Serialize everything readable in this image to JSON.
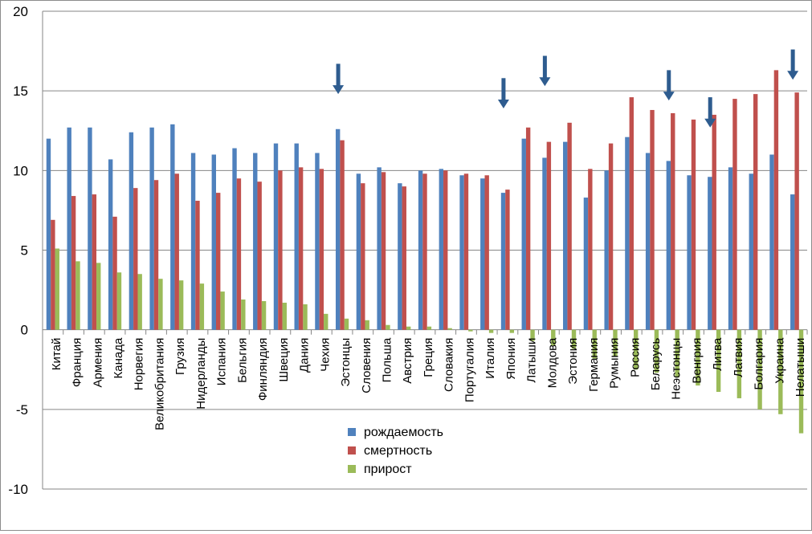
{
  "chart_data": {
    "type": "bar",
    "title": "",
    "xlabel": "",
    "ylabel": "",
    "ylim": [
      -10,
      20
    ],
    "yticks": [
      -10,
      -5,
      0,
      5,
      10,
      15,
      20
    ],
    "grid": true,
    "legend_position": "bottom-center",
    "categories": [
      "Китай",
      "Франция",
      "Армения",
      "Канада",
      "Норвегия",
      "Великобритания",
      "Грузия",
      "Нидерланды",
      "Испания",
      "Бельгия",
      "Финляндия",
      "Швеция",
      "Дания",
      "Чехия",
      "Эстонцы",
      "Словения",
      "Польша",
      "Австрия",
      "Греция",
      "Словакия",
      "Португалия",
      "Италия",
      "Япония",
      "Латыши",
      "Молдова",
      "Эстония",
      "Германия",
      "Румыния",
      "Россия",
      "Беларусь",
      "Неэстонцы",
      "Венгрия",
      "Литва",
      "Латвия",
      "Болгария",
      "Украина",
      "Нелатыши"
    ],
    "series": [
      {
        "name": "рождаемость",
        "color": "#4f81bd",
        "values": [
          12.0,
          12.7,
          12.7,
          10.7,
          12.4,
          12.7,
          12.9,
          11.1,
          11.0,
          11.4,
          11.1,
          11.7,
          11.7,
          11.1,
          12.6,
          9.8,
          10.2,
          9.2,
          10.0,
          10.1,
          9.7,
          9.5,
          8.6,
          12.0,
          10.8,
          11.8,
          8.3,
          10.0,
          12.1,
          11.1,
          10.6,
          9.7,
          9.6,
          10.2,
          9.8,
          11.0,
          8.5
        ]
      },
      {
        "name": "смертность",
        "color": "#c0504d",
        "values": [
          6.9,
          8.4,
          8.5,
          7.1,
          8.9,
          9.4,
          9.8,
          8.1,
          8.6,
          9.5,
          9.3,
          10.0,
          10.2,
          10.1,
          11.9,
          9.2,
          9.9,
          9.0,
          9.8,
          10.0,
          9.8,
          9.7,
          8.8,
          12.7,
          11.8,
          13.0,
          10.1,
          11.7,
          14.6,
          13.8,
          13.6,
          13.2,
          13.5,
          14.5,
          14.8,
          16.3,
          14.9
        ]
      },
      {
        "name": "прирост",
        "color": "#9bbb59",
        "values": [
          5.1,
          4.3,
          4.2,
          3.6,
          3.5,
          3.2,
          3.1,
          2.9,
          2.4,
          1.9,
          1.8,
          1.7,
          1.6,
          1.0,
          0.7,
          0.6,
          0.3,
          0.2,
          0.2,
          0.1,
          -0.1,
          -0.2,
          -0.2,
          -0.7,
          -1.0,
          -1.2,
          -1.8,
          -1.7,
          -2.5,
          -2.7,
          -3.0,
          -3.5,
          -3.9,
          -4.3,
          -5.0,
          -5.3,
          -6.5
        ]
      }
    ],
    "annotations": [
      {
        "type": "arrow-down-icon",
        "category": "Эстонцы",
        "y": 16.5,
        "color": "#2e5c8f"
      },
      {
        "type": "arrow-down-icon",
        "category": "Япония",
        "y": 15.6,
        "color": "#2e5c8f"
      },
      {
        "type": "arrow-down-icon",
        "category": "Молдова",
        "y": 17.0,
        "color": "#2e5c8f"
      },
      {
        "type": "arrow-down-icon",
        "category": "Неэстонцы",
        "y": 16.1,
        "color": "#2e5c8f"
      },
      {
        "type": "arrow-down-icon",
        "category": "Литва",
        "y": 14.4,
        "color": "#2e5c8f"
      },
      {
        "type": "arrow-down-icon",
        "category": "Нелатыши",
        "y": 17.4,
        "color": "#2e5c8f"
      }
    ]
  }
}
